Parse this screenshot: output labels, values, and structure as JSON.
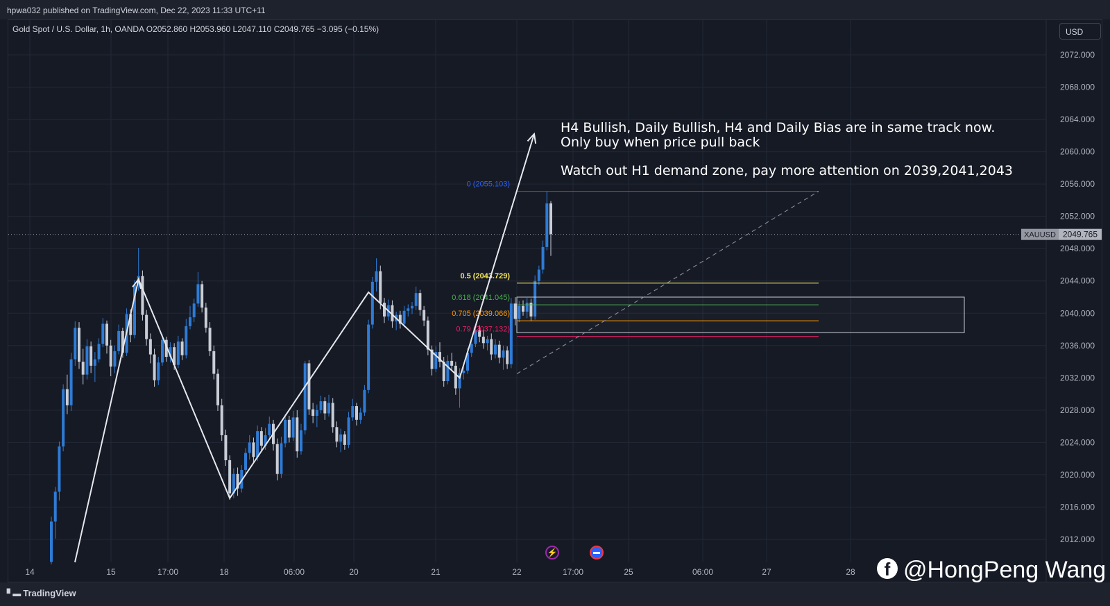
{
  "header": {
    "published": "hpwa032 published on TradingView.com, Dec 22, 2023 11:33 UTC+11",
    "symbol_line": "Gold Spot / U.S. Dollar, 1h, OANDA  O2052.860  H2053.960  L2047.110  C2049.765  −3.095 (−0.15%)",
    "currency": "USD"
  },
  "chart_data": {
    "type": "candlestick",
    "symbol": "XAUUSD",
    "timeframe": "1h",
    "ylim": [
      2009,
      2075
    ],
    "y_ticks": [
      "2072.000",
      "2068.000",
      "2064.000",
      "2060.000",
      "2056.000",
      "2052.000",
      "2048.000",
      "2044.000",
      "2040.000",
      "2036.000",
      "2032.000",
      "2028.000",
      "2024.000",
      "2020.000",
      "2016.000",
      "2012.000"
    ],
    "x_ticks": [
      "14",
      "15",
      "17:00",
      "18",
      "06:00",
      "20",
      "21",
      "22",
      "17:00",
      "25",
      "06:00",
      "27",
      "28"
    ],
    "last_price": {
      "label": "XAUUSD",
      "value": "2049.765"
    },
    "candles": [
      [
        2009.2,
        2014.8,
        2008.9,
        2014.2
      ],
      [
        2014.2,
        2018.5,
        2012.1,
        2017.9
      ],
      [
        2017.9,
        2024.1,
        2016.8,
        2023.5
      ],
      [
        2023.5,
        2031.2,
        2022.9,
        2030.6
      ],
      [
        2030.6,
        2032.4,
        2027.5,
        2028.6
      ],
      [
        2028.6,
        2035.1,
        2027.9,
        2034.3
      ],
      [
        2034.3,
        2039.0,
        2033.5,
        2038.2
      ],
      [
        2038.2,
        2038.9,
        2033.1,
        2034.0
      ],
      [
        2034.0,
        2035.6,
        2031.2,
        2032.4
      ],
      [
        2032.4,
        2036.8,
        2031.8,
        2035.9
      ],
      [
        2035.9,
        2036.5,
        2032.6,
        2033.5
      ],
      [
        2033.5,
        2035.2,
        2031.5,
        2034.3
      ],
      [
        2034.3,
        2036.9,
        2033.9,
        2036.2
      ],
      [
        2036.2,
        2039.4,
        2035.8,
        2038.7
      ],
      [
        2038.7,
        2039.1,
        2035.0,
        2036.0
      ],
      [
        2036.0,
        2036.7,
        2032.2,
        2033.4
      ],
      [
        2033.4,
        2036.0,
        2032.6,
        2035.3
      ],
      [
        2035.3,
        2038.6,
        2034.9,
        2037.8
      ],
      [
        2037.8,
        2038.2,
        2034.5,
        2035.1
      ],
      [
        2035.1,
        2040.6,
        2034.7,
        2039.9
      ],
      [
        2039.9,
        2040.5,
        2036.4,
        2037.3
      ],
      [
        2037.3,
        2044.1,
        2036.9,
        2043.5
      ],
      [
        2043.5,
        2048.1,
        2042.8,
        2044.6
      ],
      [
        2044.6,
        2045.3,
        2039.1,
        2039.8
      ],
      [
        2039.8,
        2040.4,
        2036.0,
        2036.8
      ],
      [
        2036.8,
        2037.5,
        2033.8,
        2034.9
      ],
      [
        2034.9,
        2035.6,
        2030.9,
        2031.7
      ],
      [
        2031.7,
        2034.6,
        2031.1,
        2033.9
      ],
      [
        2033.9,
        2037.4,
        2033.5,
        2036.7
      ],
      [
        2036.7,
        2037.1,
        2034.0,
        2034.6
      ],
      [
        2034.6,
        2036.4,
        2033.9,
        2035.8
      ],
      [
        2035.8,
        2036.3,
        2033.0,
        2033.6
      ],
      [
        2033.6,
        2037.2,
        2033.2,
        2036.5
      ],
      [
        2036.5,
        2036.9,
        2034.2,
        2034.8
      ],
      [
        2034.8,
        2039.3,
        2034.4,
        2038.4
      ],
      [
        2038.4,
        2040.9,
        2038.0,
        2039.5
      ],
      [
        2039.5,
        2041.8,
        2038.9,
        2041.2
      ],
      [
        2041.2,
        2045.1,
        2040.8,
        2043.6
      ],
      [
        2043.6,
        2044.0,
        2040.1,
        2040.7
      ],
      [
        2040.7,
        2041.3,
        2037.6,
        2038.2
      ],
      [
        2038.2,
        2038.9,
        2034.7,
        2035.3
      ],
      [
        2035.3,
        2036.0,
        2031.8,
        2032.5
      ],
      [
        2032.5,
        2033.1,
        2027.9,
        2028.6
      ],
      [
        2028.6,
        2029.4,
        2024.2,
        2024.9
      ],
      [
        2024.9,
        2025.6,
        2021.1,
        2021.8
      ],
      [
        2021.8,
        2022.4,
        2016.9,
        2017.7
      ],
      [
        2017.7,
        2020.8,
        2017.1,
        2020.1
      ],
      [
        2020.1,
        2020.9,
        2017.4,
        2018.3
      ],
      [
        2018.3,
        2021.2,
        2017.8,
        2020.6
      ],
      [
        2020.6,
        2023.3,
        2020.2,
        2022.7
      ],
      [
        2022.7,
        2024.9,
        2021.9,
        2024.0
      ],
      [
        2024.0,
        2024.6,
        2021.5,
        2022.2
      ],
      [
        2022.2,
        2026.1,
        2021.7,
        2025.4
      ],
      [
        2025.4,
        2025.9,
        2022.9,
        2023.6
      ],
      [
        2023.6,
        2025.8,
        2023.1,
        2024.9
      ],
      [
        2024.9,
        2027.2,
        2024.3,
        2026.3
      ],
      [
        2026.3,
        2026.8,
        2023.0,
        2023.8
      ],
      [
        2023.8,
        2024.5,
        2019.3,
        2020.1
      ],
      [
        2020.1,
        2024.7,
        2019.6,
        2023.9
      ],
      [
        2023.9,
        2027.5,
        2023.4,
        2026.8
      ],
      [
        2026.8,
        2027.3,
        2024.0,
        2024.6
      ],
      [
        2024.6,
        2027.9,
        2024.2,
        2027.1
      ],
      [
        2027.1,
        2028.0,
        2022.1,
        2022.9
      ],
      [
        2022.9,
        2026.3,
        2022.5,
        2025.5
      ],
      [
        2025.5,
        2034.1,
        2025.0,
        2033.8
      ],
      [
        2033.8,
        2034.2,
        2027.4,
        2028.1
      ],
      [
        2028.1,
        2028.9,
        2026.4,
        2027.3
      ],
      [
        2027.3,
        2028.7,
        2025.9,
        2028.0
      ],
      [
        2028.0,
        2029.8,
        2027.6,
        2029.1
      ],
      [
        2029.1,
        2029.6,
        2026.8,
        2027.6
      ],
      [
        2027.6,
        2029.9,
        2027.2,
        2028.9
      ],
      [
        2028.9,
        2029.5,
        2025.2,
        2025.9
      ],
      [
        2025.9,
        2026.6,
        2023.4,
        2024.1
      ],
      [
        2024.1,
        2025.7,
        2022.8,
        2025.0
      ],
      [
        2025.0,
        2025.4,
        2023.1,
        2023.7
      ],
      [
        2023.7,
        2027.8,
        2023.3,
        2027.1
      ],
      [
        2027.1,
        2029.4,
        2026.7,
        2028.5
      ],
      [
        2028.5,
        2028.9,
        2026.1,
        2026.8
      ],
      [
        2026.8,
        2028.3,
        2026.3,
        2027.7
      ],
      [
        2027.7,
        2031.1,
        2027.3,
        2030.5
      ],
      [
        2030.5,
        2039.2,
        2030.1,
        2038.6
      ],
      [
        2038.6,
        2044.5,
        2038.1,
        2043.9
      ],
      [
        2043.9,
        2046.8,
        2042.7,
        2045.2
      ],
      [
        2045.2,
        2045.9,
        2040.5,
        2041.3
      ],
      [
        2041.3,
        2041.9,
        2038.8,
        2039.6
      ],
      [
        2039.6,
        2041.7,
        2039.1,
        2041.0
      ],
      [
        2041.0,
        2041.6,
        2038.2,
        2039.0
      ],
      [
        2039.0,
        2040.2,
        2037.9,
        2039.8
      ],
      [
        2039.8,
        2040.3,
        2038.1,
        2038.7
      ],
      [
        2038.7,
        2040.9,
        2038.3,
        2040.3
      ],
      [
        2040.3,
        2041.1,
        2039.6,
        2040.6
      ],
      [
        2040.6,
        2041.4,
        2039.9,
        2040.9
      ],
      [
        2040.9,
        2043.3,
        2040.4,
        2042.5
      ],
      [
        2042.5,
        2042.9,
        2039.7,
        2040.4
      ],
      [
        2040.4,
        2040.9,
        2038.4,
        2039.1
      ],
      [
        2039.1,
        2039.6,
        2034.8,
        2035.5
      ],
      [
        2035.5,
        2036.0,
        2032.3,
        2033.1
      ],
      [
        2033.1,
        2035.9,
        2032.7,
        2035.2
      ],
      [
        2035.2,
        2036.4,
        2033.3,
        2034.0
      ],
      [
        2034.0,
        2034.6,
        2030.9,
        2031.6
      ],
      [
        2031.6,
        2034.8,
        2031.2,
        2034.1
      ],
      [
        2034.1,
        2035.1,
        2032.9,
        2033.5
      ],
      [
        2033.5,
        2034.0,
        2029.9,
        2030.7
      ],
      [
        2030.7,
        2033.2,
        2028.3,
        2032.6
      ],
      [
        2032.6,
        2033.4,
        2031.8,
        2032.9
      ],
      [
        2032.9,
        2035.7,
        2032.5,
        2035.1
      ],
      [
        2035.1,
        2036.9,
        2034.6,
        2036.2
      ],
      [
        2036.2,
        2038.6,
        2035.8,
        2037.9
      ],
      [
        2037.9,
        2038.5,
        2036.4,
        2037.1
      ],
      [
        2037.1,
        2038.0,
        2035.6,
        2036.3
      ],
      [
        2036.3,
        2037.2,
        2035.4,
        2036.8
      ],
      [
        2036.8,
        2037.5,
        2034.2,
        2034.9
      ],
      [
        2034.9,
        2036.8,
        2034.4,
        2036.1
      ],
      [
        2036.1,
        2036.6,
        2033.8,
        2034.5
      ],
      [
        2034.5,
        2036.0,
        2033.0,
        2035.4
      ],
      [
        2035.4,
        2035.9,
        2033.1,
        2033.7
      ],
      [
        2033.7,
        2041.9,
        2033.2,
        2041.2
      ],
      [
        2041.2,
        2042.0,
        2038.5,
        2039.3
      ],
      [
        2039.3,
        2041.5,
        2038.9,
        2040.9
      ],
      [
        2040.9,
        2041.6,
        2039.7,
        2040.2
      ],
      [
        2040.2,
        2041.9,
        2039.4,
        2041.3
      ],
      [
        2041.3,
        2041.8,
        2039.0,
        2039.6
      ],
      [
        2039.6,
        2044.7,
        2039.2,
        2044.0
      ],
      [
        2044.0,
        2045.9,
        2043.5,
        2045.4
      ],
      [
        2045.4,
        2049.0,
        2044.9,
        2048.2
      ],
      [
        2048.2,
        2055.1,
        2047.8,
        2053.6
      ],
      [
        2053.6,
        2053.9,
        2047.1,
        2049.8
      ]
    ],
    "fib_levels": [
      {
        "label": "0 (2055.103)",
        "value": 2055.103,
        "color": "#2962ff"
      },
      {
        "label": "0.5 (2043.729)",
        "value": 2043.729,
        "color": "#f7e85a"
      },
      {
        "label": "0.618 (2041.045)",
        "value": 2041.045,
        "color": "#4caf50"
      },
      {
        "label": "0.705 (2039.066)",
        "value": 2039.066,
        "color": "#ff9800"
      },
      {
        "label": "0.79 (2037.132)",
        "value": 2037.132,
        "color": "#e91e63"
      }
    ],
    "demand_zone": {
      "top": 2042.0,
      "bottom": 2037.6
    },
    "annotation_lines": [
      "H4 Bullish, Daily Bullish, H4 and Daily Bias are in same track now.",
      "Only buy when price pull back",
      "Watch out H1 demand zone, pay more attention on 2039,2041,2043"
    ]
  },
  "colors": {
    "up": "#2e7bd6",
    "down": "#c8cdd6",
    "background": "#161a25",
    "grid": "#232836"
  },
  "footer": {
    "logo": "TradingView",
    "watermark": "@HongPeng Wang"
  }
}
